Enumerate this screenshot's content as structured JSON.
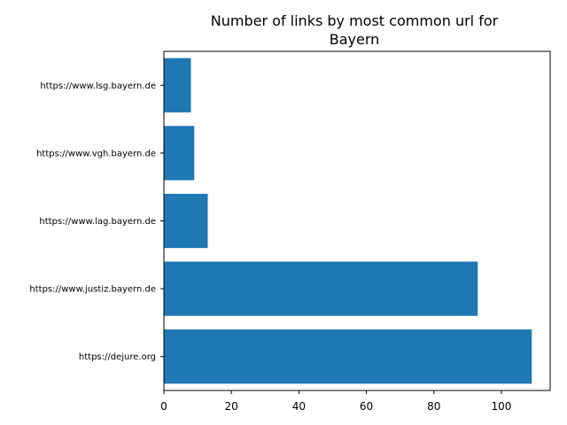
{
  "chart_data": {
    "type": "bar",
    "orientation": "horizontal",
    "title_lines": [
      "Number of links by most common url for",
      "Bayern"
    ],
    "categories": [
      "https://dejure.org",
      "https://www.justiz.bayern.de",
      "https://www.lag.bayern.de",
      "https://www.vgh.bayern.de",
      "https://www.lsg.bayern.de"
    ],
    "values": [
      109,
      93,
      13,
      9,
      8
    ],
    "xlim": [
      0,
      114.45
    ],
    "xticks": [
      0,
      20,
      40,
      60,
      80,
      100
    ],
    "xlabel": "",
    "ylabel": "",
    "bar_color": "#1f77b4",
    "grid": false
  }
}
